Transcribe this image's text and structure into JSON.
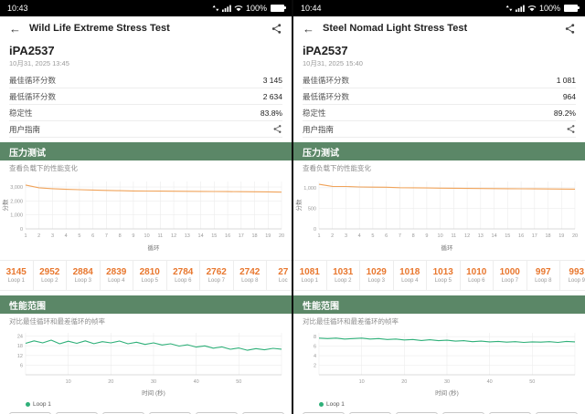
{
  "colors": {
    "header_green": "#5b8767",
    "score_orange": "#e8772e",
    "stress_line": "#f0a35a",
    "fps_line": "#2fb079",
    "statusbar_bg": "#000000"
  },
  "panels": [
    {
      "status": {
        "time": "10:43",
        "battery": "100%"
      },
      "header": {
        "title": "Wild Life Extreme Stress Test"
      },
      "result": {
        "device": "iPA2537",
        "date": "10月31, 2025 13:45",
        "rows": [
          {
            "label": "最佳循环分数",
            "value": "3 145"
          },
          {
            "label": "最低循环分数",
            "value": "2 634"
          },
          {
            "label": "稳定性",
            "value": "83.8%"
          }
        ],
        "guide_label": "用户指南"
      },
      "stress": {
        "title": "压力测试",
        "subtitle": "查看负载下的性能变化"
      },
      "loops": [
        {
          "score": "3145",
          "label": "Loop 1"
        },
        {
          "score": "2952",
          "label": "Loop 2"
        },
        {
          "score": "2884",
          "label": "Loop 3"
        },
        {
          "score": "2839",
          "label": "Loop 4"
        },
        {
          "score": "2810",
          "label": "Loop 5"
        },
        {
          "score": "2784",
          "label": "Loop 6"
        },
        {
          "score": "2762",
          "label": "Loop 7"
        },
        {
          "score": "2742",
          "label": "Loop 8"
        },
        {
          "score": "27",
          "label": "Loc"
        }
      ],
      "range": {
        "title": "性能范围",
        "subtitle": "对比最佳循环和最差循环的帧率",
        "legend": "Loop 1"
      },
      "chart_data": [
        {
          "type": "line",
          "title": "压力测试",
          "ylabel": "分数",
          "xlabel": "循环",
          "x_ticks": [
            "1",
            "2",
            "3",
            "4",
            "5",
            "6",
            "7",
            "8",
            "9",
            "10",
            "11",
            "12",
            "13",
            "14",
            "15",
            "16",
            "17",
            "18",
            "19",
            "20"
          ],
          "values": [
            3145,
            2952,
            2884,
            2839,
            2810,
            2784,
            2762,
            2742,
            2723,
            2712,
            2704,
            2698,
            2692,
            2687,
            2681,
            2676,
            2670,
            2663,
            2652,
            2634
          ],
          "ylim": [
            0,
            3400
          ],
          "yticks": [
            {
              "v": 0,
              "label": "0"
            },
            {
              "v": 1000,
              "label": "1,000"
            },
            {
              "v": 2000,
              "label": "2,000"
            },
            {
              "v": 3000,
              "label": "3,000"
            }
          ],
          "color": "#f0a35a"
        },
        {
          "type": "line",
          "title": "性能范围",
          "xlabel": "时间 (秒)",
          "legend": "Loop 1",
          "xlim": [
            0,
            60
          ],
          "xticks": [
            10,
            20,
            30,
            40,
            50
          ],
          "values": [
            19.5,
            21,
            19.8,
            21.5,
            19.2,
            20.8,
            19.5,
            21,
            19.3,
            20.5,
            19.8,
            20.9,
            19.2,
            20.2,
            18.8,
            19.8,
            18.5,
            19.2,
            17.8,
            18.6,
            17.2,
            17.9,
            16.5,
            17.3,
            15.8,
            16.6,
            15.2,
            16.2,
            15.5,
            16.4,
            15.9
          ],
          "ylim": [
            0,
            26
          ],
          "yticks": [
            {
              "v": 6,
              "label": "6"
            },
            {
              "v": 12,
              "label": "12"
            },
            {
              "v": 18,
              "label": "18"
            },
            {
              "v": 24,
              "label": "24"
            }
          ],
          "color": "#2fb079"
        }
      ]
    },
    {
      "status": {
        "time": "10:44",
        "battery": "100%"
      },
      "header": {
        "title": "Steel Nomad Light Stress Test"
      },
      "result": {
        "device": "iPA2537",
        "date": "10月31, 2025 15:40",
        "rows": [
          {
            "label": "最佳循环分数",
            "value": "1 081"
          },
          {
            "label": "最低循环分数",
            "value": "964"
          },
          {
            "label": "稳定性",
            "value": "89.2%"
          }
        ],
        "guide_label": "用户指南"
      },
      "stress": {
        "title": "压力测试",
        "subtitle": "查看负载下的性能变化"
      },
      "loops": [
        {
          "score": "1081",
          "label": "Loop 1"
        },
        {
          "score": "1031",
          "label": "Loop 2"
        },
        {
          "score": "1029",
          "label": "Loop 3"
        },
        {
          "score": "1018",
          "label": "Loop 4"
        },
        {
          "score": "1013",
          "label": "Loop 5"
        },
        {
          "score": "1010",
          "label": "Loop 6"
        },
        {
          "score": "1000",
          "label": "Loop 7"
        },
        {
          "score": "997",
          "label": "Loop 8"
        },
        {
          "score": "993",
          "label": "Loop 9"
        }
      ],
      "range": {
        "title": "性能范围",
        "subtitle": "对比最佳循环和最差循环的帧率",
        "legend": "Loop 1"
      },
      "chart_data": [
        {
          "type": "line",
          "title": "压力测试",
          "ylabel": "分数",
          "xlabel": "循环",
          "x_ticks": [
            "1",
            "2",
            "3",
            "4",
            "5",
            "6",
            "7",
            "8",
            "9",
            "10",
            "11",
            "12",
            "13",
            "14",
            "15",
            "16",
            "17",
            "18",
            "19",
            "20"
          ],
          "values": [
            1081,
            1031,
            1029,
            1018,
            1013,
            1010,
            1000,
            997,
            993,
            989,
            986,
            983,
            980,
            978,
            976,
            974,
            971,
            969,
            966,
            964
          ],
          "ylim": [
            0,
            1150
          ],
          "yticks": [
            {
              "v": 0,
              "label": "0"
            },
            {
              "v": 500,
              "label": "500"
            },
            {
              "v": 1000,
              "label": "1,000"
            }
          ],
          "color": "#f0a35a"
        },
        {
          "type": "line",
          "title": "性能范围",
          "xlabel": "时间 (秒)",
          "legend": "Loop 1",
          "xlim": [
            0,
            60
          ],
          "xticks": [
            10,
            20,
            30,
            40,
            50
          ],
          "values": [
            7.7,
            7.6,
            7.7,
            7.5,
            7.6,
            7.7,
            7.5,
            7.6,
            7.4,
            7.5,
            7.3,
            7.4,
            7.2,
            7.35,
            7.15,
            7.25,
            7.05,
            7.15,
            6.95,
            7.05,
            6.9,
            7.0,
            6.85,
            6.95,
            6.8,
            6.9,
            6.85,
            6.95,
            6.8,
            7.0,
            6.9
          ],
          "ylim": [
            0,
            8.8
          ],
          "yticks": [
            {
              "v": 2,
              "label": "2"
            },
            {
              "v": 4,
              "label": "4"
            },
            {
              "v": 6,
              "label": "6"
            },
            {
              "v": 8,
              "label": "8"
            }
          ],
          "color": "#2fb079"
        }
      ]
    }
  ]
}
